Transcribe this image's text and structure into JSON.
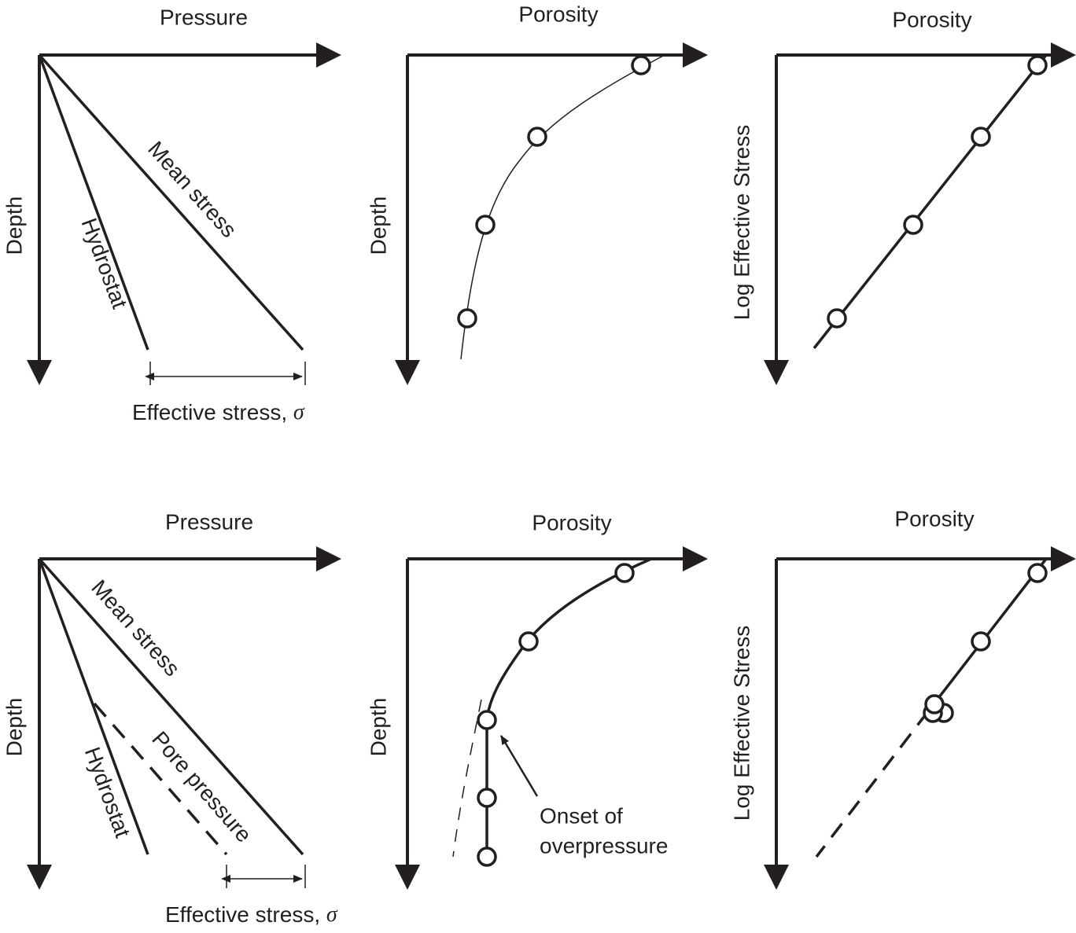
{
  "panels": [
    {
      "title": "Pressure",
      "y_label": "Depth",
      "line_labels": [
        "Mean stress",
        "Hydrostat"
      ],
      "x_note": {
        "text": "Effective stress,",
        "symbol": "σ"
      }
    },
    {
      "title": "Porosity",
      "y_label": "Depth"
    },
    {
      "title": "Porosity",
      "y_label": "Log Effective Stress"
    },
    {
      "title": "Pressure",
      "y_label": "Depth",
      "line_labels": [
        "Mean stress",
        "Pore pressure",
        "Hydrostat"
      ],
      "x_note": {
        "text": "Effective stress,",
        "symbol": "σ"
      }
    },
    {
      "title": "Porosity",
      "y_label": "Depth",
      "annotation": [
        "Onset of",
        "overpressure"
      ]
    },
    {
      "title": "Porosity",
      "y_label": "Log Effective Stress"
    }
  ]
}
